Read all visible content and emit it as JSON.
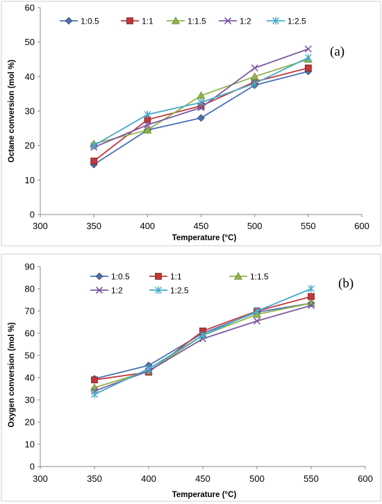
{
  "colors": {
    "1:0.5": "#4a6fb5",
    "1:1": "#c0393b",
    "1:1.5": "#8fb34a",
    "1:2": "#7b57a3",
    "1:2.5": "#46aacb",
    "axis": "#888888",
    "background": "#ffffff"
  },
  "chart_data": [
    {
      "type": "line",
      "panel_label": "(a)",
      "xlabel": "Temperature (°C)",
      "ylabel": "Octane conversion  (mol %)",
      "xlim": [
        300,
        600
      ],
      "ylim": [
        0,
        60
      ],
      "xticks": [
        "300",
        "350",
        "400",
        "450",
        "500",
        "550",
        "600"
      ],
      "yticks": [
        "0",
        "10",
        "20",
        "30",
        "40",
        "50",
        "60"
      ],
      "grid": false,
      "legend_position": "top",
      "legend": [
        "1:0.5",
        "1:1",
        "1:1.5",
        "1:2",
        "1:2.5"
      ],
      "x": [
        350,
        400,
        450,
        500,
        550
      ],
      "series": [
        {
          "name": "1:0.5",
          "marker": "diamond",
          "values": [
            14.5,
            24.5,
            28,
            37.5,
            41.5
          ]
        },
        {
          "name": "1:1",
          "marker": "square",
          "values": [
            15.5,
            27.5,
            31.5,
            38.5,
            42.5
          ]
        },
        {
          "name": "1:1.5",
          "marker": "triangle",
          "values": [
            20.5,
            24.5,
            34.5,
            40,
            45
          ]
        },
        {
          "name": "1:2",
          "marker": "x",
          "values": [
            19.5,
            26,
            31,
            42.5,
            48
          ]
        },
        {
          "name": "1:2.5",
          "marker": "star",
          "values": [
            20,
            29,
            32.5,
            38,
            45.5
          ]
        }
      ]
    },
    {
      "type": "line",
      "panel_label": "(b)",
      "xlabel": "Temperature (°C)",
      "ylabel": "Oxygen conversion  (mol %)",
      "xlim": [
        300,
        600
      ],
      "ylim": [
        0,
        90
      ],
      "xticks": [
        "300",
        "350",
        "400",
        "450",
        "500",
        "550",
        "600"
      ],
      "yticks": [
        "0",
        "10",
        "20",
        "30",
        "40",
        "50",
        "60",
        "70",
        "80",
        "90"
      ],
      "grid": false,
      "legend_position": "top",
      "legend": [
        "1:0.5",
        "1:1",
        "1:1.5",
        "1:2",
        "1:2.5"
      ],
      "x": [
        350,
        400,
        450,
        500,
        550
      ],
      "series": [
        {
          "name": "1:0.5",
          "marker": "diamond",
          "values": [
            39.5,
            45.5,
            60,
            69.5,
            73.5
          ]
        },
        {
          "name": "1:1",
          "marker": "square",
          "values": [
            39,
            42.5,
            61,
            70,
            76.5
          ]
        },
        {
          "name": "1:1.5",
          "marker": "triangle",
          "values": [
            35.5,
            43,
            59,
            68.5,
            73.5
          ]
        },
        {
          "name": "1:2",
          "marker": "x",
          "values": [
            34,
            43,
            57.5,
            65.5,
            72.5
          ]
        },
        {
          "name": "1:2.5",
          "marker": "star",
          "values": [
            32.5,
            44,
            59,
            70,
            80
          ]
        }
      ]
    }
  ]
}
